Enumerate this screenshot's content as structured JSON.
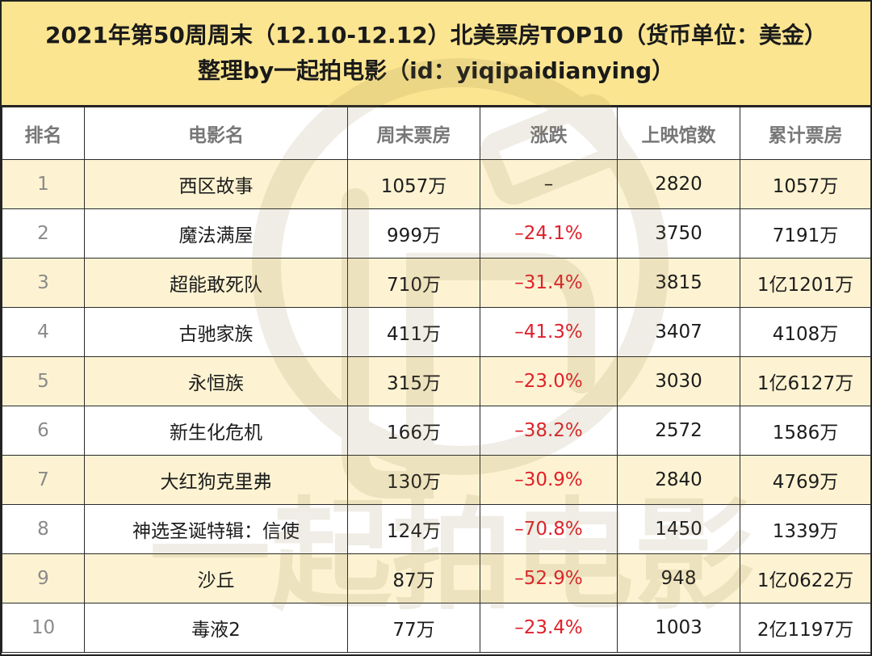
{
  "title": {
    "line1": "2021年第50周周末（12.10-12.12）北美票房TOP10（货币单位：美金）",
    "line2": "整理by一起拍电影（id：yiqipaidianying）"
  },
  "table": {
    "headers": [
      "排名",
      "电影名",
      "周末票房",
      "涨跌",
      "上映馆数",
      "累计票房"
    ],
    "rows": [
      {
        "rank": "1",
        "name": "西区故事",
        "weekend": "1057万",
        "change": "–",
        "theaters": "2820",
        "total": "1057万"
      },
      {
        "rank": "2",
        "name": "魔法满屋",
        "weekend": "999万",
        "change": "–24.1%",
        "theaters": "3750",
        "total": "7191万"
      },
      {
        "rank": "3",
        "name": "超能敢死队",
        "weekend": "710万",
        "change": "–31.4%",
        "theaters": "3815",
        "total": "1亿1201万"
      },
      {
        "rank": "4",
        "name": "古驰家族",
        "weekend": "411万",
        "change": "–41.3%",
        "theaters": "3407",
        "total": "4108万"
      },
      {
        "rank": "5",
        "name": "永恒族",
        "weekend": "315万",
        "change": "–23.0%",
        "theaters": "3030",
        "total": "1亿6127万"
      },
      {
        "rank": "6",
        "name": "新生化危机",
        "weekend": "166万",
        "change": "–38.2%",
        "theaters": "2572",
        "total": "1586万"
      },
      {
        "rank": "7",
        "name": "大红狗克里弗",
        "weekend": "130万",
        "change": "–30.9%",
        "theaters": "2840",
        "total": "4769万"
      },
      {
        "rank": "8",
        "name": "神选圣诞特辑：信使",
        "weekend": "124万",
        "change": "–70.8%",
        "theaters": "1450",
        "total": "1339万"
      },
      {
        "rank": "9",
        "name": "沙丘",
        "weekend": "87万",
        "change": "–52.9%",
        "theaters": "948",
        "total": "1亿0622万"
      },
      {
        "rank": "10",
        "name": "毒液2",
        "weekend": "77万",
        "change": "–23.4%",
        "theaters": "1003",
        "total": "2亿1197万"
      }
    ]
  },
  "watermark": {
    "text": "一起拍电影",
    "icon": "film-camera-logo-icon"
  },
  "colors": {
    "title_bg": "#fbe591",
    "odd_row_bg": "#fdf3d2",
    "negative": "#e0202a",
    "header_text": "#777777"
  }
}
